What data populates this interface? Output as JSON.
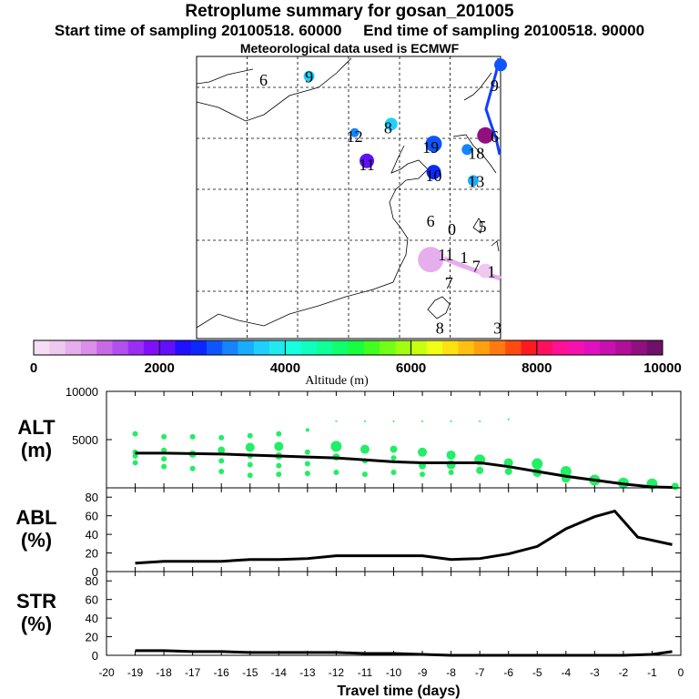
{
  "header": {
    "title": "Retroplume summary for gosan_201005",
    "subtitle": "Start time of sampling 20100518. 60000     End time of sampling 20100518. 90000",
    "met": "Meteorological data used is ECMWF"
  },
  "map": {
    "day_labels": [
      {
        "t": "6",
        "lon": 0.22,
        "lat": 0.08
      },
      {
        "t": "9",
        "lon": 0.37,
        "lat": 0.07
      },
      {
        "t": "12",
        "lon": 0.52,
        "lat": 0.28
      },
      {
        "t": "8",
        "lon": 0.63,
        "lat": 0.25
      },
      {
        "t": "11",
        "lon": 0.56,
        "lat": 0.38
      },
      {
        "t": "19",
        "lon": 0.77,
        "lat": 0.32
      },
      {
        "t": "18",
        "lon": 0.92,
        "lat": 0.34
      },
      {
        "t": "10",
        "lon": 0.78,
        "lat": 0.42
      },
      {
        "t": "13",
        "lon": 0.92,
        "lat": 0.44
      },
      {
        "t": "6",
        "lon": 0.77,
        "lat": 0.58
      },
      {
        "t": "0",
        "lon": 0.84,
        "lat": 0.61
      },
      {
        "t": "5",
        "lon": 0.94,
        "lat": 0.6
      },
      {
        "t": "11",
        "lon": 0.82,
        "lat": 0.7
      },
      {
        "t": "1",
        "lon": 0.88,
        "lat": 0.71
      },
      {
        "t": "7",
        "lon": 0.92,
        "lat": 0.74
      },
      {
        "t": "1",
        "lon": 0.97,
        "lat": 0.76
      },
      {
        "t": "7",
        "lon": 0.83,
        "lat": 0.8
      },
      {
        "t": "8",
        "lon": 0.8,
        "lat": 0.96
      },
      {
        "t": "3",
        "lon": 0.99,
        "lat": 0.96
      },
      {
        "t": "6",
        "lon": 0.98,
        "lat": 0.28
      },
      {
        "t": "9",
        "lon": 0.98,
        "lat": 0.1
      }
    ],
    "markers": [
      {
        "lon": 0.37,
        "lat": 0.07,
        "alt": 3500,
        "r": 6
      },
      {
        "lon": 0.52,
        "lat": 0.27,
        "alt": 3000,
        "r": 5
      },
      {
        "lon": 0.64,
        "lat": 0.24,
        "alt": 3500,
        "r": 7
      },
      {
        "lon": 0.56,
        "lat": 0.37,
        "alt": 2100,
        "r": 8
      },
      {
        "lon": 0.78,
        "lat": 0.31,
        "alt": 2800,
        "r": 9
      },
      {
        "lon": 0.89,
        "lat": 0.33,
        "alt": 3200,
        "r": 6
      },
      {
        "lon": 0.78,
        "lat": 0.41,
        "alt": 2600,
        "r": 8
      },
      {
        "lon": 0.91,
        "lat": 0.44,
        "alt": 3400,
        "r": 6
      },
      {
        "lon": 0.95,
        "lat": 0.28,
        "alt": 9500,
        "r": 9
      },
      {
        "lon": 1.0,
        "lat": 0.03,
        "alt": 2800,
        "r": 7
      },
      {
        "lon": 0.77,
        "lat": 0.72,
        "alt": 500,
        "r": 14
      },
      {
        "lon": 0.95,
        "lat": 0.76,
        "alt": 400,
        "r": 8
      }
    ]
  },
  "colorbar": {
    "title": "Altitude (m)",
    "tick_labels": [
      "0",
      "2000",
      "4000",
      "6000",
      "8000",
      "10000"
    ],
    "colors": [
      "#f5ddf5",
      "#efc8f0",
      "#e6aeec",
      "#dc8fe9",
      "#c86ae6",
      "#b14ff0",
      "#9a2ef5",
      "#8010fb",
      "#6010fb",
      "#2010ff",
      "#0a28ff",
      "#0f55ff",
      "#1584ff",
      "#1aadff",
      "#1fd0ff",
      "#20eaf0",
      "#18ffe0",
      "#10ffc0",
      "#10ff99",
      "#10ff6c",
      "#15ff40",
      "#40ff20",
      "#70ff15",
      "#a0ff10",
      "#c8ff10",
      "#f0ff15",
      "#ffe010",
      "#ffc010",
      "#ffa010",
      "#ff7a10",
      "#ff4a10",
      "#ff1a20",
      "#ff1060",
      "#ff1095",
      "#f510b0",
      "#e010c0",
      "#c810b0",
      "#b01098",
      "#901080",
      "#70106a"
    ]
  },
  "chart_data": [
    {
      "type": "scatter",
      "name": "ALT",
      "ylabel": "ALT\n(m)",
      "ylabel_top": "ALT",
      "ylabel_bottom": "(m)",
      "ylim": [
        0,
        10000
      ],
      "yticks": [
        {
          "v": 0,
          "label": ""
        },
        {
          "v": 5000,
          "label": "5000"
        },
        {
          "v": 10000,
          "label": "10000"
        }
      ],
      "mean_line": {
        "x": [
          -19,
          -18,
          -17,
          -16,
          -15,
          -14,
          -13,
          -12,
          -11,
          -10,
          -9,
          -8,
          -7,
          -6,
          -5,
          -4,
          -3,
          -2,
          -1,
          -0.3
        ],
        "y": [
          3600,
          3600,
          3550,
          3500,
          3400,
          3300,
          3200,
          3100,
          2900,
          2700,
          2600,
          2600,
          2600,
          2200,
          1700,
          1200,
          800,
          400,
          100,
          50
        ]
      },
      "points": [
        {
          "x": -19,
          "y": 5600,
          "s": 3
        },
        {
          "x": -19,
          "y": 3700,
          "s": 3
        },
        {
          "x": -19,
          "y": 2600,
          "s": 3
        },
        {
          "x": -19,
          "y": 3300,
          "s": 3
        },
        {
          "x": -18,
          "y": 5300,
          "s": 3
        },
        {
          "x": -18,
          "y": 3900,
          "s": 3
        },
        {
          "x": -18,
          "y": 3000,
          "s": 3
        },
        {
          "x": -18,
          "y": 2200,
          "s": 3
        },
        {
          "x": -17,
          "y": 5300,
          "s": 3
        },
        {
          "x": -17,
          "y": 3500,
          "s": 4
        },
        {
          "x": -17,
          "y": 2000,
          "s": 3
        },
        {
          "x": -16,
          "y": 5200,
          "s": 3
        },
        {
          "x": -16,
          "y": 3900,
          "s": 4
        },
        {
          "x": -16,
          "y": 2800,
          "s": 3
        },
        {
          "x": -16,
          "y": 1700,
          "s": 3
        },
        {
          "x": -15,
          "y": 5400,
          "s": 3
        },
        {
          "x": -15,
          "y": 4200,
          "s": 5
        },
        {
          "x": -15,
          "y": 3300,
          "s": 3
        },
        {
          "x": -15,
          "y": 2400,
          "s": 3
        },
        {
          "x": -15,
          "y": 1300,
          "s": 3
        },
        {
          "x": -14,
          "y": 5600,
          "s": 3
        },
        {
          "x": -14,
          "y": 4300,
          "s": 5
        },
        {
          "x": -14,
          "y": 3300,
          "s": 4
        },
        {
          "x": -14,
          "y": 2300,
          "s": 3
        },
        {
          "x": -14,
          "y": 1400,
          "s": 3
        },
        {
          "x": -13,
          "y": 6000,
          "s": 2
        },
        {
          "x": -13,
          "y": 3700,
          "s": 3
        },
        {
          "x": -13,
          "y": 2500,
          "s": 3
        },
        {
          "x": -13,
          "y": 1500,
          "s": 3
        },
        {
          "x": -12,
          "y": 6900,
          "s": 1
        },
        {
          "x": -12,
          "y": 4300,
          "s": 6
        },
        {
          "x": -12,
          "y": 3200,
          "s": 4
        },
        {
          "x": -12,
          "y": 1600,
          "s": 3
        },
        {
          "x": -11,
          "y": 6900,
          "s": 1
        },
        {
          "x": -11,
          "y": 4000,
          "s": 5
        },
        {
          "x": -11,
          "y": 2800,
          "s": 3
        },
        {
          "x": -11,
          "y": 1400,
          "s": 3
        },
        {
          "x": -10,
          "y": 6900,
          "s": 1
        },
        {
          "x": -10,
          "y": 4000,
          "s": 4
        },
        {
          "x": -10,
          "y": 3100,
          "s": 3
        },
        {
          "x": -10,
          "y": 1600,
          "s": 3
        },
        {
          "x": -9,
          "y": 6900,
          "s": 1
        },
        {
          "x": -9,
          "y": 3700,
          "s": 5
        },
        {
          "x": -9,
          "y": 2300,
          "s": 4
        },
        {
          "x": -9,
          "y": 1400,
          "s": 3
        },
        {
          "x": -8,
          "y": 6900,
          "s": 1
        },
        {
          "x": -8,
          "y": 3400,
          "s": 5
        },
        {
          "x": -8,
          "y": 2400,
          "s": 5
        },
        {
          "x": -8,
          "y": 1600,
          "s": 3
        },
        {
          "x": -7,
          "y": 6900,
          "s": 1
        },
        {
          "x": -7,
          "y": 2900,
          "s": 6
        },
        {
          "x": -7,
          "y": 1800,
          "s": 4
        },
        {
          "x": -6,
          "y": 7100,
          "s": 1
        },
        {
          "x": -6,
          "y": 2600,
          "s": 5
        },
        {
          "x": -6,
          "y": 1700,
          "s": 4
        },
        {
          "x": -5,
          "y": 2500,
          "s": 6
        },
        {
          "x": -5,
          "y": 1600,
          "s": 5
        },
        {
          "x": -4,
          "y": 1700,
          "s": 6
        },
        {
          "x": -4,
          "y": 1000,
          "s": 5
        },
        {
          "x": -3,
          "y": 800,
          "s": 6
        },
        {
          "x": -2,
          "y": 500,
          "s": 6
        },
        {
          "x": -1,
          "y": 400,
          "s": 6
        },
        {
          "x": -0.2,
          "y": 150,
          "s": 4
        }
      ]
    },
    {
      "type": "line",
      "name": "ABL",
      "ylabel": "ABL\n(%)",
      "ylabel_top": "ABL",
      "ylabel_bottom": "(%)",
      "ylim": [
        0,
        90
      ],
      "yticks": [
        {
          "v": 0,
          "label": "0"
        },
        {
          "v": 20,
          "label": "20"
        },
        {
          "v": 40,
          "label": "40"
        },
        {
          "v": 60,
          "label": "60"
        },
        {
          "v": 80,
          "label": "80"
        }
      ],
      "x": [
        -19,
        -18,
        -17,
        -16,
        -15,
        -14,
        -13,
        -12,
        -11,
        -10,
        -9,
        -8,
        -7,
        -6,
        -5,
        -4,
        -3,
        -2.3,
        -1.5,
        -0.3
      ],
      "y": [
        9,
        11,
        11,
        11,
        13,
        13,
        14,
        17,
        17,
        17,
        17,
        13,
        14,
        19,
        27,
        46,
        59,
        65,
        37,
        29
      ]
    },
    {
      "type": "line",
      "name": "STR",
      "ylabel": "STR\n(%)",
      "ylabel_top": "STR",
      "ylabel_bottom": "(%)",
      "ylim": [
        0,
        90
      ],
      "yticks": [
        {
          "v": 0,
          "label": "0"
        },
        {
          "v": 20,
          "label": "20"
        },
        {
          "v": 40,
          "label": "40"
        },
        {
          "v": 60,
          "label": "60"
        },
        {
          "v": 80,
          "label": "80"
        }
      ],
      "x": [
        -19,
        -18,
        -17,
        -16,
        -15,
        -14,
        -13,
        -12,
        -11,
        -10,
        -9,
        -8,
        -7,
        -6,
        -5,
        -4,
        -3,
        -2,
        -1,
        -0.3
      ],
      "y": [
        5,
        5,
        4,
        4,
        3,
        3,
        3,
        3,
        2,
        2,
        1,
        0,
        0,
        0,
        0,
        0,
        0,
        0,
        1,
        4
      ],
      "xlabel": "Travel time (days)",
      "xlim": [
        -20,
        0
      ],
      "xticks": [
        "-20",
        "-19",
        "-18",
        "-17",
        "-16",
        "-15",
        "-14",
        "-13",
        "-12",
        "-11",
        "-10",
        "-9",
        "-8",
        "-7",
        "-6",
        "-5",
        "-4",
        "-3",
        "-2",
        "-1",
        "0"
      ]
    }
  ]
}
